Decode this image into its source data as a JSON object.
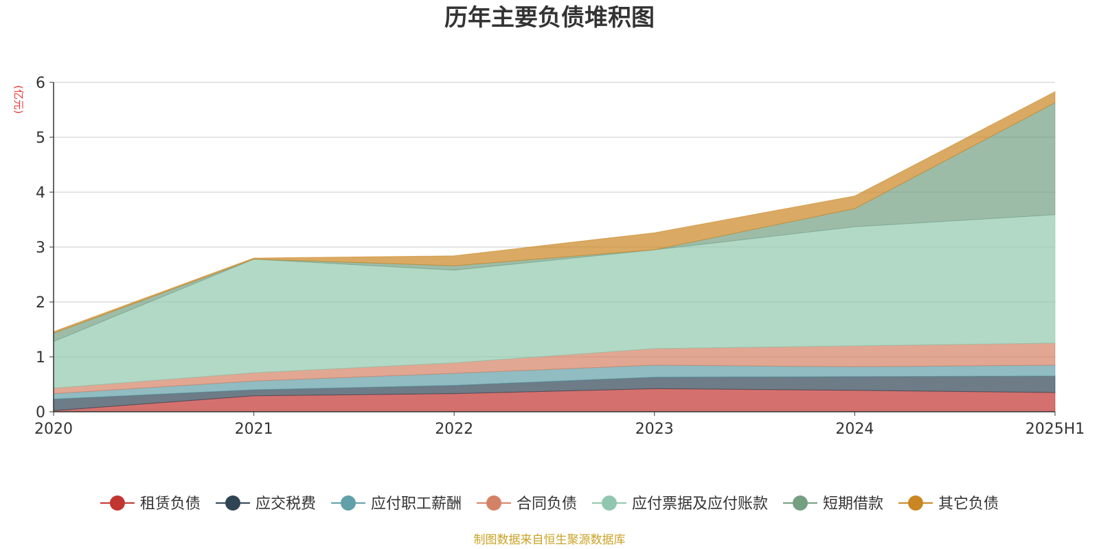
{
  "chart_data": {
    "type": "area",
    "stacked": true,
    "title": "历年主要负债堆积图",
    "unit_label": "(亿元)",
    "categories": [
      "2020",
      "2021",
      "2022",
      "2023",
      "2024",
      "2025H1"
    ],
    "ylim": [
      0,
      6
    ],
    "y_ticks": [
      "0",
      "1",
      "2",
      "3",
      "4",
      "5",
      "6"
    ],
    "grid": true,
    "legend_position": "bottom",
    "series": [
      {
        "name": "租赁负债",
        "color": "#c23531",
        "values": [
          0.02,
          0.29,
          0.33,
          0.42,
          0.39,
          0.35
        ]
      },
      {
        "name": "应交税费",
        "color": "#2f4554",
        "values": [
          0.21,
          0.11,
          0.15,
          0.21,
          0.25,
          0.3
        ]
      },
      {
        "name": "应付职工薪酬",
        "color": "#61a0a8",
        "values": [
          0.1,
          0.16,
          0.22,
          0.22,
          0.18,
          0.2
        ]
      },
      {
        "name": "合同负债",
        "color": "#d48265",
        "values": [
          0.1,
          0.15,
          0.19,
          0.3,
          0.38,
          0.4
        ]
      },
      {
        "name": "应付票据及应付账款",
        "color": "#91c7ae",
        "values": [
          0.85,
          2.07,
          1.69,
          1.8,
          2.17,
          2.34
        ]
      },
      {
        "name": "短期借款",
        "color": "#749f83",
        "values": [
          0.15,
          0.0,
          0.08,
          0.0,
          0.33,
          2.04
        ]
      },
      {
        "name": "其它负债",
        "color": "#ca8622",
        "values": [
          0.03,
          0.02,
          0.18,
          0.31,
          0.23,
          0.2
        ]
      }
    ]
  },
  "footer": {
    "source": "制图数据来自恒生聚源数据库"
  }
}
